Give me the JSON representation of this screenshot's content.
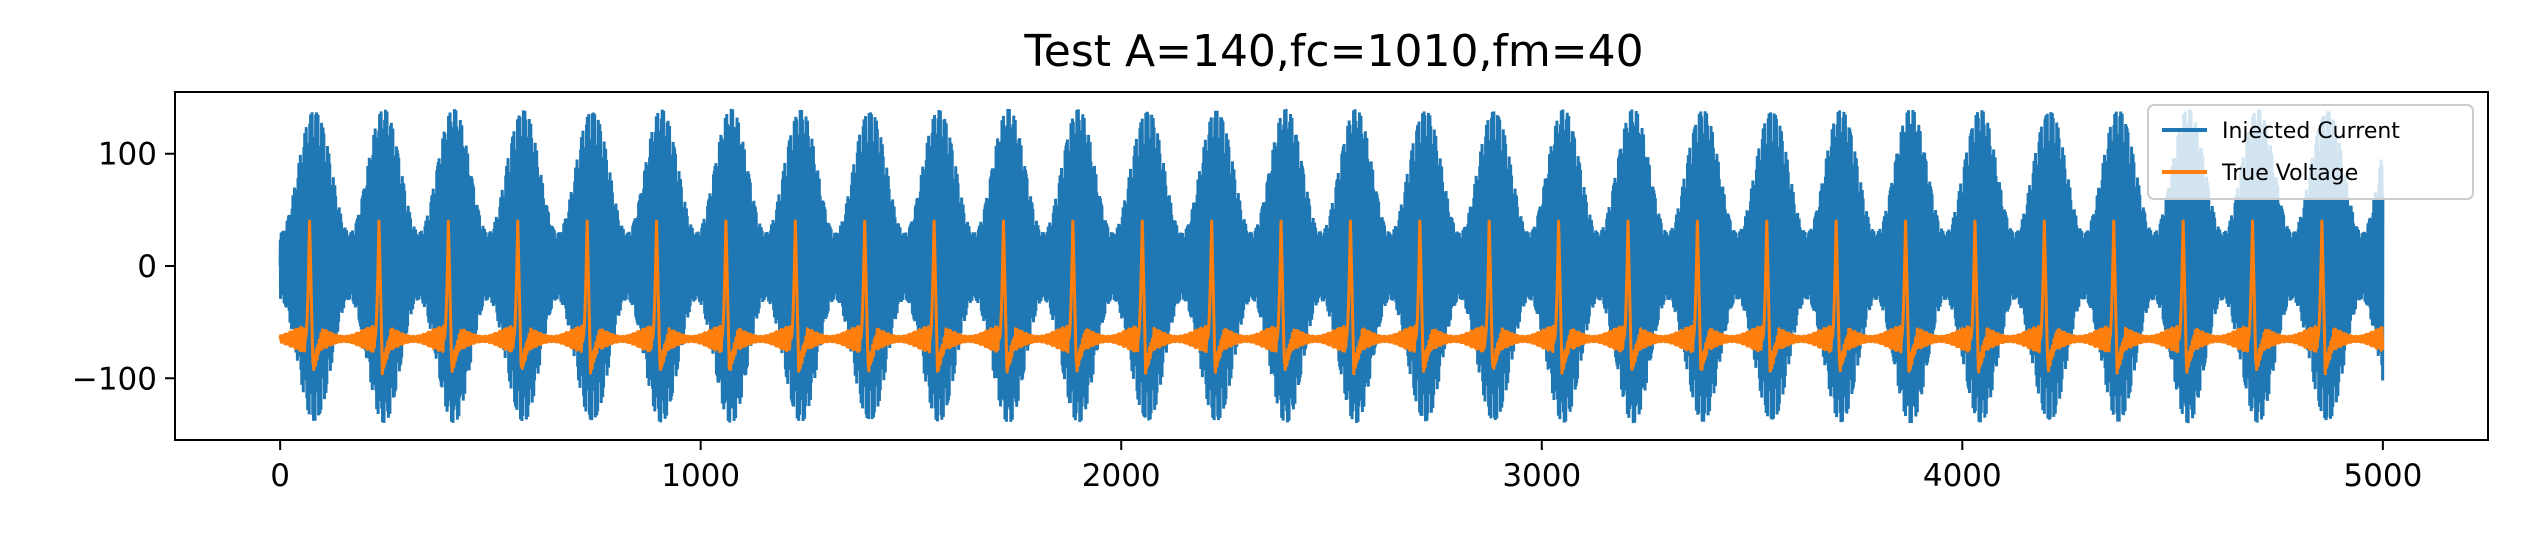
{
  "chart_data": {
    "type": "line",
    "title": "Test A=140,fc=1010,fm=40",
    "xlabel": "",
    "ylabel": "",
    "xlim": [
      -250,
      5250
    ],
    "ylim": [
      -155,
      155
    ],
    "x_ticks": [
      0,
      1000,
      2000,
      3000,
      4000,
      5000
    ],
    "x_tick_labels": [
      "0",
      "1000",
      "2000",
      "3000",
      "4000",
      "5000"
    ],
    "y_ticks": [
      -100,
      0,
      100
    ],
    "y_tick_labels": [
      "−100",
      "0",
      "100"
    ],
    "grid": false,
    "legend_position": "top-right",
    "series": [
      {
        "name": "Injected Current",
        "color": "#1f77b4",
        "x_range": [
          0,
          5000
        ],
        "amplitude": 140,
        "carrier_freq": 1010,
        "modulation_freq": 40,
        "envelope_min_abs": 30,
        "envelope_period": 165
      },
      {
        "name": "True Voltage",
        "color": "#ff7f0e",
        "x_range": [
          0,
          5000
        ],
        "baseline": -65,
        "spike_peak": 40,
        "spike_trough": -90,
        "first_spike_x": 70,
        "spike_period": 165
      }
    ]
  }
}
